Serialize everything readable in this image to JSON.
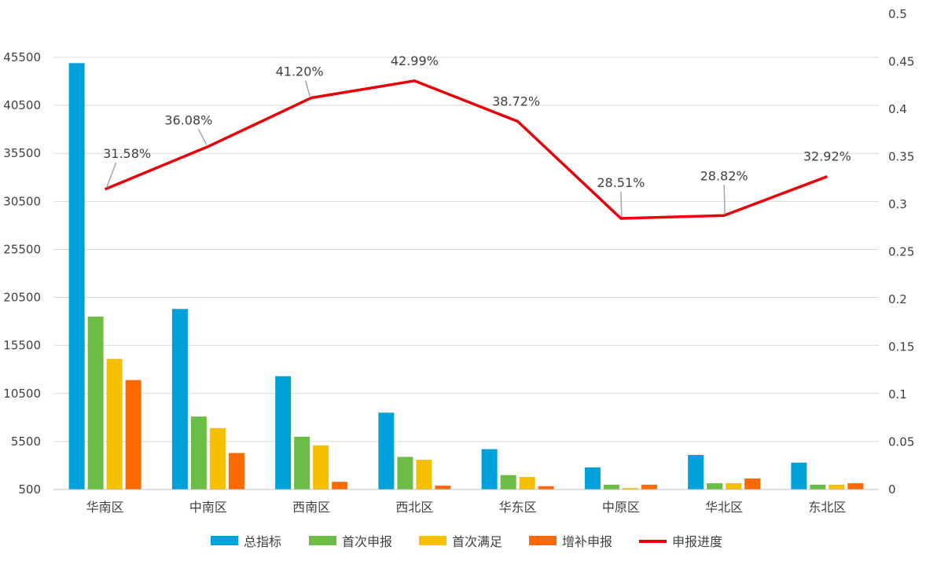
{
  "chart_data": {
    "type": "bar",
    "categories": [
      "华南区",
      "中南区",
      "西南区",
      "西北区",
      "华东区",
      "中原区",
      "华北区",
      "东北区"
    ],
    "series": [
      {
        "name": "总指标",
        "type": "bar",
        "axis": "left",
        "color": "#00A1DB",
        "values": [
          44900,
          19300,
          12300,
          8500,
          4700,
          2800,
          4100,
          3300
        ]
      },
      {
        "name": "首次申报",
        "type": "bar",
        "axis": "left",
        "color": "#6CBD45",
        "values": [
          18500,
          8100,
          6000,
          3900,
          2000,
          1000,
          1150,
          1000
        ]
      },
      {
        "name": "首次满足",
        "type": "bar",
        "axis": "left",
        "color": "#F6BF00",
        "values": [
          14100,
          6900,
          5100,
          3600,
          1800,
          650,
          1150,
          1000
        ]
      },
      {
        "name": "增补申报",
        "type": "bar",
        "axis": "left",
        "color": "#FF6A00",
        "values": [
          11900,
          4300,
          1300,
          900,
          850,
          1000,
          1650,
          1150
        ]
      },
      {
        "name": "申报进度",
        "type": "line",
        "axis": "right",
        "color": "#E8000B",
        "values": [
          0.3158,
          0.3608,
          0.412,
          0.4299,
          0.3872,
          0.2851,
          0.2882,
          0.3292
        ],
        "labels": [
          "31.58%",
          "36.08%",
          "41.20%",
          "42.99%",
          "38.72%",
          "28.51%",
          "28.82%",
          "32.92%"
        ]
      }
    ],
    "left_axis": {
      "ylim": [
        500,
        45500
      ],
      "ticks": [
        500,
        5500,
        10500,
        15500,
        20500,
        25500,
        30500,
        35500,
        40500,
        45500
      ],
      "tick_labels": [
        "500",
        "5500",
        "10500",
        "15500",
        "20500",
        "25500",
        "30500",
        "35500",
        "40500",
        "45500"
      ]
    },
    "right_axis": {
      "ylim": [
        0,
        0.5
      ],
      "ticks": [
        0,
        0.05,
        0.1,
        0.15,
        0.2,
        0.25,
        0.3,
        0.35,
        0.4,
        0.45,
        0.5
      ],
      "tick_labels": [
        "0",
        "0.05",
        "0.1",
        "0.15",
        "0.2",
        "0.25",
        "0.3",
        "0.35",
        "0.4",
        "0.45",
        "0.5"
      ]
    },
    "grid": true,
    "legend": "bottom-center",
    "title": "",
    "xlabel": "",
    "ylabel": ""
  }
}
